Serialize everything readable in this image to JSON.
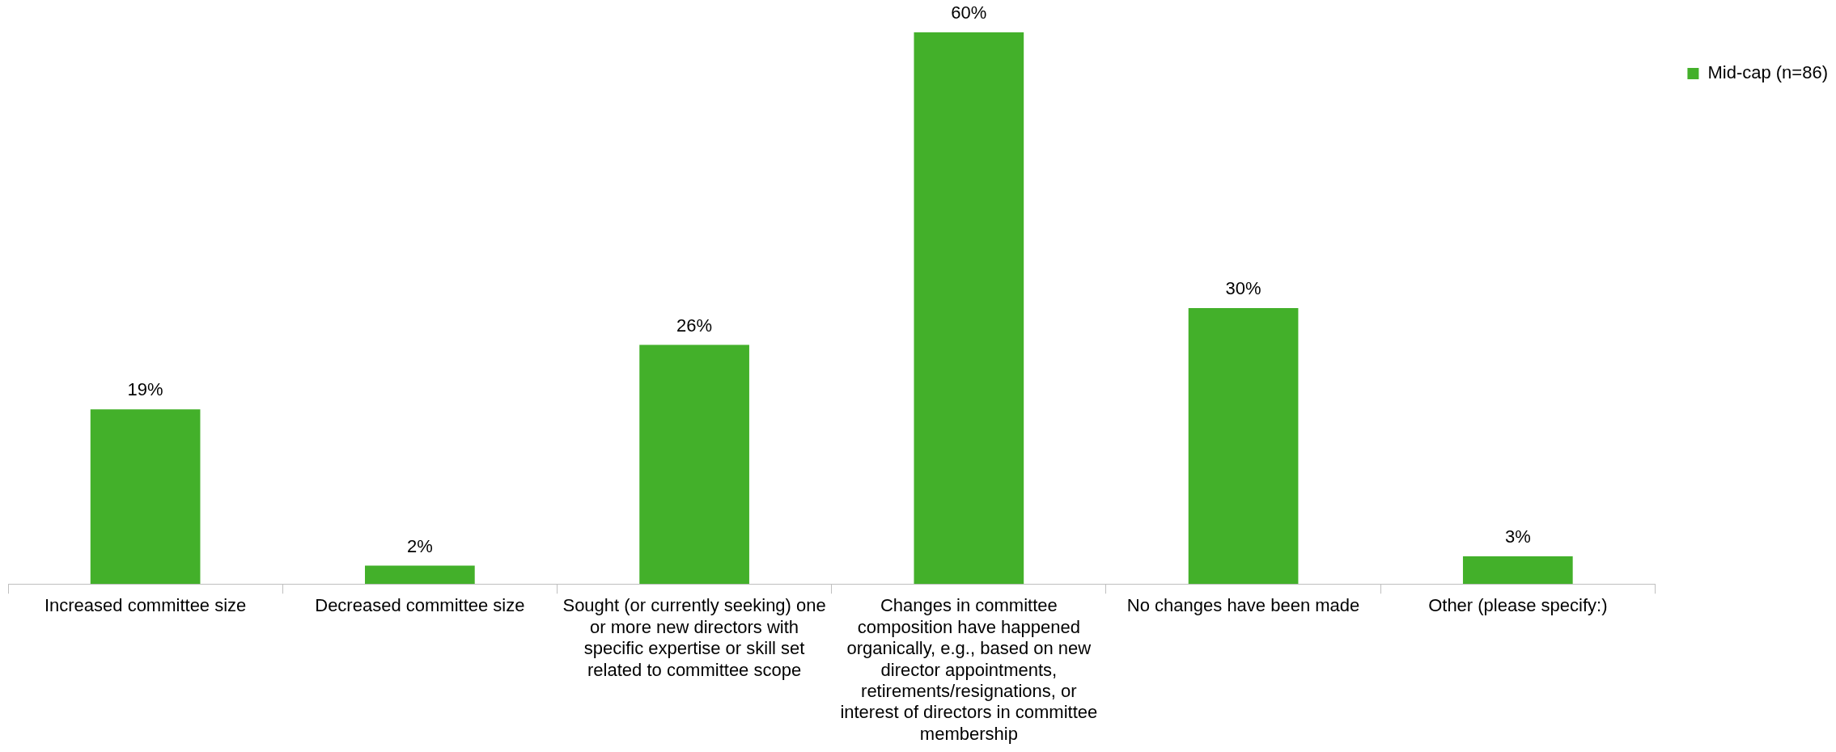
{
  "chart_data": {
    "type": "bar",
    "categories": [
      "Increased committee size",
      "Decreased committee size",
      "Sought (or currently seeking) one or more new directors with specific expertise or skill set related to committee scope",
      "Changes in committee composition have happened organically, e.g., based on new director appointments, retirements/resignations, or interest of directors in committee membership",
      "No changes have been made",
      "Other (please specify:)"
    ],
    "series": [
      {
        "name": "Mid-cap (n=86)",
        "color": "#43b02a",
        "values": [
          19,
          2,
          26,
          60,
          30,
          3
        ],
        "value_labels": [
          "19%",
          "2%",
          "26%",
          "60%",
          "30%",
          "3%"
        ]
      }
    ],
    "legend": "top right"
  }
}
